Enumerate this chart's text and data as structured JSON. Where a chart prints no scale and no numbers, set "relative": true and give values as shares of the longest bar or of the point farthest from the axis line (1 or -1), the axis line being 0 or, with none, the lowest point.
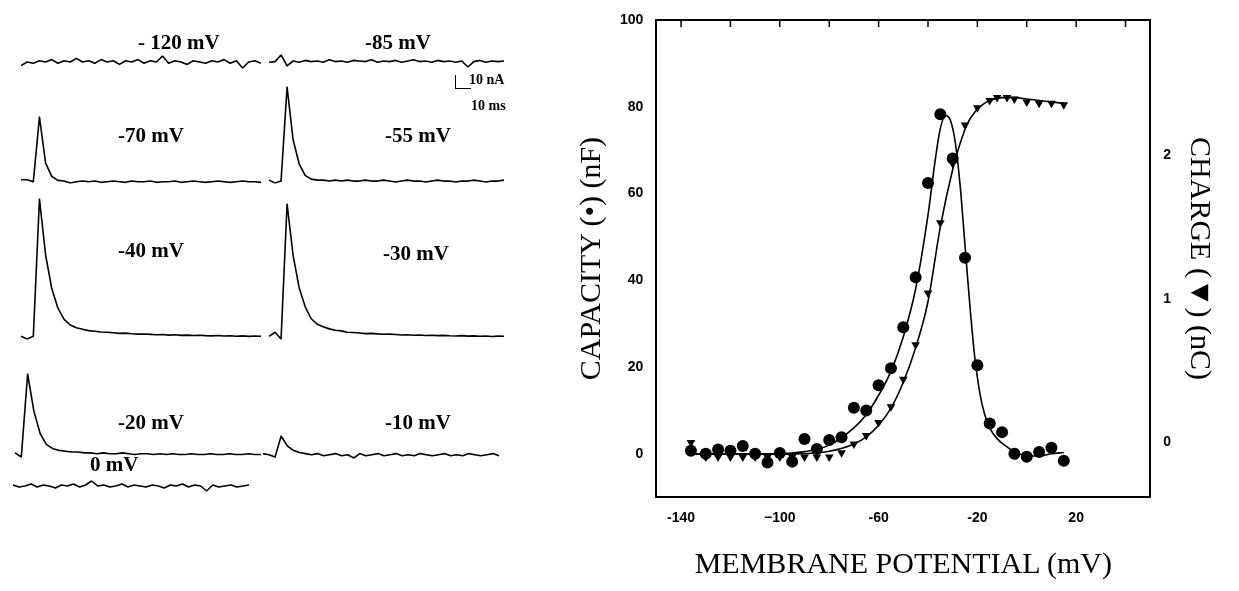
{
  "chart_data": [
    {
      "type": "line",
      "title": "- 120 mV",
      "relative": true,
      "color": "#000000",
      "categories": [
        null,
        null,
        null,
        null,
        null,
        null,
        null,
        null,
        null,
        null,
        null,
        null,
        null,
        null,
        null,
        null,
        null,
        null,
        null,
        null,
        null,
        null,
        null,
        null,
        null,
        null,
        null,
        null,
        null,
        null,
        null,
        null,
        null,
        null,
        null,
        null,
        null,
        null,
        null,
        null
      ],
      "values": [
        0.2,
        0.5,
        0.4,
        0.6,
        0.5,
        0.7,
        0.4,
        0.6,
        0.5,
        0.8,
        0.5,
        0.6,
        0.4,
        0.7,
        0.5,
        0.6,
        0.3,
        0.6,
        0.5,
        0.7,
        0.4,
        0.6,
        0.5,
        1,
        0.4,
        0.6,
        0.5,
        0.3,
        0.6,
        0.5,
        0.4,
        0.6,
        0.5,
        0.7,
        0.4,
        0.6,
        0,
        0.5,
        0.6,
        0.4
      ]
    },
    {
      "type": "line",
      "title": "-85 mV",
      "relative": true,
      "color": "#000000",
      "annotations": [
        "10 nA",
        "10 ms"
      ],
      "categories": [
        null,
        null,
        null,
        null,
        null,
        null,
        null,
        null,
        null,
        null,
        null,
        null,
        null,
        null,
        null,
        null,
        null,
        null,
        null,
        null,
        null,
        null,
        null,
        null,
        null,
        null,
        null,
        null,
        null,
        null,
        null,
        null,
        null,
        null,
        null,
        null,
        null,
        null,
        null,
        null
      ],
      "values": [
        0.4,
        0.45,
        1,
        0.1,
        0.5,
        0.4,
        0.55,
        0.45,
        0.5,
        0.4,
        0.6,
        0.45,
        0.5,
        0.4,
        0.55,
        0.5,
        0.45,
        0.6,
        0.4,
        0.5,
        0.45,
        0.55,
        0.4,
        0.5,
        0.6,
        0.45,
        0.5,
        0.4,
        0.55,
        0.45,
        0.5,
        0.4,
        0.5,
        0,
        0.45,
        0.55,
        0.4,
        0.5,
        0.45,
        0.5
      ]
    },
    {
      "type": "line",
      "title": "-70 mV",
      "relative": true,
      "color": "#000000",
      "categories": [
        null,
        null,
        null,
        null,
        null,
        null,
        null,
        null,
        null,
        null,
        null,
        null,
        null,
        null,
        null,
        null,
        null,
        null,
        null,
        null,
        null,
        null,
        null,
        null,
        null,
        null,
        null,
        null,
        null,
        null,
        null,
        null,
        null,
        null,
        null,
        null,
        null,
        null,
        null,
        null
      ],
      "values": [
        0.05,
        0.05,
        0.02,
        1,
        0.3,
        0.1,
        0.04,
        0.03,
        0,
        0.02,
        0.03,
        0.02,
        0.03,
        0.01,
        0.02,
        0.03,
        0.02,
        0.01,
        0.03,
        0.02,
        0.02,
        0.03,
        0.01,
        0.02,
        0.02,
        0.03,
        0.01,
        0.02,
        0.03,
        0.02,
        0.01,
        0.02,
        0.03,
        0.02,
        0.01,
        0.02,
        0.03,
        0.02,
        0.02,
        0.01
      ]
    },
    {
      "type": "line",
      "title": "-55 mV",
      "relative": true,
      "color": "#000000",
      "categories": [
        null,
        null,
        null,
        null,
        null,
        null,
        null,
        null,
        null,
        null,
        null,
        null,
        null,
        null,
        null,
        null,
        null,
        null,
        null,
        null,
        null,
        null,
        null,
        null,
        null,
        null,
        null,
        null,
        null,
        null,
        null,
        null,
        null,
        null,
        null,
        null,
        null,
        null,
        null,
        null
      ],
      "values": [
        0.03,
        0,
        0.02,
        1,
        0.45,
        0.2,
        0.08,
        0.04,
        0.03,
        0.03,
        0.02,
        0.03,
        0.02,
        0.03,
        0.02,
        0.02,
        0.03,
        0.02,
        0.02,
        0.03,
        0.02,
        0.01,
        0.02,
        0.03,
        0.02,
        0.02,
        0.01,
        0.02,
        0.03,
        0.02,
        0.02,
        0.01,
        0.02,
        0.02,
        0.03,
        0.02,
        0.01,
        0.02,
        0.02,
        0.03
      ]
    },
    {
      "type": "line",
      "title": "-40 mV",
      "relative": true,
      "color": "#000000",
      "categories": [
        null,
        null,
        null,
        null,
        null,
        null,
        null,
        null,
        null,
        null,
        null,
        null,
        null,
        null,
        null,
        null,
        null,
        null,
        null,
        null,
        null,
        null,
        null,
        null,
        null,
        null,
        null,
        null,
        null,
        null,
        null,
        null,
        null,
        null,
        null,
        null,
        null,
        null,
        null,
        null
      ],
      "values": [
        0.02,
        0,
        0.02,
        1,
        0.6,
        0.36,
        0.22,
        0.14,
        0.1,
        0.08,
        0.07,
        0.06,
        0.055,
        0.05,
        0.048,
        0.045,
        0.04,
        0.042,
        0.038,
        0.035,
        0.036,
        0.033,
        0.03,
        0.032,
        0.028,
        0.03,
        0.026,
        0.028,
        0.025,
        0.027,
        0.024,
        0.022,
        0.025,
        0.021,
        0.023,
        0.02,
        0.022,
        0.019,
        0.021,
        0.02
      ]
    },
    {
      "type": "line",
      "title": "-30 mV",
      "relative": true,
      "color": "#000000",
      "categories": [
        null,
        null,
        null,
        null,
        null,
        null,
        null,
        null,
        null,
        null,
        null,
        null,
        null,
        null,
        null,
        null,
        null,
        null,
        null,
        null,
        null,
        null,
        null,
        null,
        null,
        null,
        null,
        null,
        null,
        null,
        null,
        null,
        null,
        null,
        null,
        null,
        null,
        null,
        null,
        null
      ],
      "values": [
        0.02,
        0.05,
        0,
        1,
        0.62,
        0.38,
        0.24,
        0.15,
        0.11,
        0.09,
        0.075,
        0.065,
        0.06,
        0.05,
        0.048,
        0.045,
        0.04,
        0.042,
        0.038,
        0.035,
        0.036,
        0.033,
        0.03,
        0.032,
        0.028,
        0.03,
        0.026,
        0.028,
        0.025,
        0.027,
        0.024,
        0.022,
        0.025,
        0.021,
        0.023,
        0.02,
        0.022,
        0.019,
        0.021,
        0.02
      ]
    },
    {
      "type": "line",
      "title": "-20 mV",
      "relative": true,
      "color": "#000000",
      "categories": [
        null,
        null,
        null,
        null,
        null,
        null,
        null,
        null,
        null,
        null,
        null,
        null,
        null,
        null,
        null,
        null,
        null,
        null,
        null,
        null,
        null,
        null,
        null,
        null,
        null,
        null,
        null,
        null,
        null,
        null,
        null,
        null,
        null,
        null,
        null,
        null,
        null,
        null,
        null,
        null
      ],
      "values": [
        0.05,
        0,
        1,
        0.55,
        0.28,
        0.15,
        0.1,
        0.08,
        0.07,
        0.06,
        0.06,
        0.05,
        0.05,
        0.04,
        0.05,
        0.04,
        0.04,
        0.05,
        0.04,
        0.03,
        0.04,
        0.04,
        0.03,
        0.04,
        0.03,
        0.04,
        0.03,
        0.03,
        0.04,
        0.03,
        0.03,
        0.04,
        0.03,
        0.03,
        0.04,
        0.03,
        0.03,
        0.04,
        0.03,
        0.03
      ]
    },
    {
      "type": "line",
      "title": "-10 mV",
      "relative": true,
      "color": "#000000",
      "categories": [
        null,
        null,
        null,
        null,
        null,
        null,
        null,
        null,
        null,
        null,
        null,
        null,
        null,
        null,
        null,
        null,
        null,
        null,
        null,
        null,
        null,
        null,
        null,
        null,
        null,
        null,
        null,
        null,
        null,
        null,
        null,
        null,
        null,
        null,
        null,
        null,
        null,
        null,
        null,
        null
      ],
      "values": [
        0.2,
        0.15,
        0.05,
        1,
        0.55,
        0.35,
        0.25,
        0.2,
        0.15,
        0.2,
        0.1,
        0.15,
        0.2,
        0.1,
        0.15,
        0,
        0.2,
        0.1,
        0.15,
        0.2,
        0.1,
        0.15,
        0.2,
        0.1,
        0.15,
        0.1,
        0.2,
        0.15,
        0.1,
        0.15,
        0.2,
        0.1,
        0.15,
        0.1,
        0.2,
        0.15,
        0.1,
        0.15,
        0.2,
        0.1
      ]
    },
    {
      "type": "line",
      "title": "0 mV",
      "relative": true,
      "color": "#000000",
      "categories": [
        null,
        null,
        null,
        null,
        null,
        null,
        null,
        null,
        null,
        null,
        null,
        null,
        null,
        null,
        null,
        null,
        null,
        null,
        null,
        null,
        null,
        null,
        null,
        null,
        null,
        null,
        null,
        null,
        null,
        null,
        null,
        null,
        null,
        null,
        null,
        null,
        null,
        null,
        null,
        null
      ],
      "values": [
        0.6,
        0.4,
        0.5,
        0.7,
        0.4,
        0.6,
        0.5,
        0.3,
        0.6,
        0.5,
        0.7,
        0.4,
        0.6,
        1,
        0.5,
        0.6,
        0.4,
        0.5,
        0.7,
        0.4,
        0.6,
        0.5,
        0.4,
        0.6,
        0.5,
        0.3,
        0.6,
        0.5,
        0.7,
        0.4,
        0.6,
        0.5,
        0,
        0.6,
        0.4,
        0.5,
        0.6,
        0.4,
        0.5,
        0.6
      ]
    },
    {
      "type": "scatter",
      "xlabel": "MEMBRANE POTENTIAL (mV)",
      "ylabel": "CAPACITY (•) (nF)",
      "y2label": "CHARGE (▼) (nC)",
      "xlim": [
        -150,
        50
      ],
      "xticks": [
        -140,
        {
          "value": -120,
          "label": null
        },
        {
          "value": -100,
          "label": "−100"
        },
        {
          "value": -80,
          "label": null
        },
        -60,
        {
          "value": -40,
          "label": null
        },
        -20,
        {
          "value": 0,
          "label": null
        },
        20,
        {
          "value": 40,
          "label": null
        }
      ],
      "ylim": [
        -10,
        100
      ],
      "yticks": [
        0,
        20,
        40,
        60,
        80,
        100
      ],
      "y2lim": [
        -0.38,
        2.94
      ],
      "y2ticks": [
        0,
        1,
        2
      ],
      "series": [
        {
          "type": "scatter",
          "marker": "circle",
          "color": "#000000",
          "x": [
            -136,
            -130,
            -125,
            -120,
            -115,
            -110,
            -105,
            -100,
            -95,
            -90,
            -85,
            -80,
            -75,
            -70,
            -65,
            -60,
            -55,
            -50,
            -45,
            -40,
            -35,
            -30,
            -25,
            -20,
            -15,
            -10,
            -5,
            0,
            5,
            10,
            15
          ],
          "values": [
            0.7,
            0,
            1,
            0.7,
            1.8,
            0,
            -2,
            0.2,
            -1.8,
            3.4,
            1.1,
            3.2,
            3.8,
            10.6,
            10,
            15.8,
            19.7,
            29.2,
            40.7,
            62.4,
            78.3,
            68.1,
            45.2,
            20.4,
            7,
            5,
            0,
            -0.7,
            0.4,
            1.4,
            -1.6
          ]
        },
        {
          "type": "scatter",
          "marker": "triangle",
          "axis": "y2",
          "color": "#000000",
          "x": [
            -136,
            -130,
            -125,
            -120,
            -115,
            -110,
            -105,
            -100,
            -95,
            -90,
            -85,
            -80,
            -75,
            -70,
            -65,
            -60,
            -55,
            -50,
            -45,
            -40,
            -35,
            -30,
            -25,
            -20,
            -15,
            -12,
            -8,
            -5,
            0,
            5,
            10,
            15
          ],
          "values": [
            0,
            -0.1,
            -0.1,
            -0.1,
            -0.1,
            -0.1,
            -0.1,
            -0.1,
            -0.1,
            -0.1,
            -0.1,
            -0.1,
            -0.07,
            -0.01,
            0.05,
            0.14,
            0.25,
            0.44,
            0.68,
            1.04,
            1.53,
            1.94,
            2.21,
            2.33,
            2.38,
            2.4,
            2.4,
            2.39,
            2.37,
            2.36,
            2.36,
            2.35
          ]
        },
        {
          "type": "line",
          "marker": "none",
          "color": "#000000",
          "x": [
            -136,
            -120,
            -100,
            -90,
            -80,
            -70,
            -65,
            -60,
            -55,
            -50,
            -45,
            -40,
            -37,
            -35,
            -33,
            -31,
            -29,
            -27,
            -25,
            -23,
            -21,
            -19,
            -17,
            -15,
            -12,
            -9,
            -5,
            0,
            5,
            10,
            15
          ],
          "values": [
            0,
            0,
            0,
            0.5,
            2,
            6,
            9,
            13.5,
            19,
            27,
            38,
            55,
            68,
            75,
            78,
            77,
            72,
            62,
            48,
            34,
            22,
            14,
            9,
            6,
            3.5,
            2,
            0.5,
            -0.5,
            -0.5,
            0,
            0.3
          ]
        },
        {
          "type": "line",
          "marker": "none",
          "axis": "y2",
          "color": "#000000",
          "x": [
            -136,
            -100,
            -80,
            -70,
            -65,
            -60,
            -55,
            -50,
            -45,
            -40,
            -35,
            -30,
            -27,
            -24,
            -21,
            -18,
            -15,
            -10,
            -5,
            0,
            5,
            10,
            15
          ],
          "values": [
            -0.08,
            -0.08,
            -0.06,
            -0.01,
            0.04,
            0.12,
            0.24,
            0.42,
            0.66,
            0.98,
            1.5,
            1.9,
            2.08,
            2.22,
            2.3,
            2.35,
            2.38,
            2.4,
            2.4,
            2.39,
            2.38,
            2.37,
            2.36
          ]
        }
      ]
    }
  ]
}
